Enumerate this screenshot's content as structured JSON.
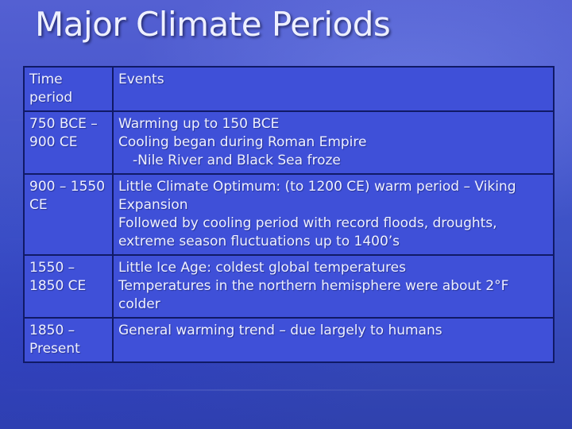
{
  "title": "Major Climate Periods",
  "table": {
    "headers": [
      "Time period",
      "Events"
    ],
    "rows": [
      {
        "period": "750 BCE – 900 CE",
        "events": [
          "Warming up to 150 BCE",
          "Cooling began during Roman Empire",
          "-Nile River and Black Sea froze"
        ]
      },
      {
        "period": "900 – 1550 CE",
        "events": [
          "Little Climate Optimum: (to 1200 CE) warm period – Viking Expansion",
          "Followed by cooling period with record floods, droughts, extreme season fluctuations up to 1400’s"
        ]
      },
      {
        "period": "1550 – 1850 CE",
        "events": [
          "Little Ice Age: coldest global temperatures",
          "Temperatures in the northern hemisphere were about 2°F colder"
        ]
      },
      {
        "period": "1850 – Present",
        "events": [
          "General warming trend – due largely to humans"
        ]
      }
    ]
  },
  "colors": {
    "background": "#4656cc",
    "cell": "#3f50d8",
    "border": "#101a66",
    "text": "#eef0ff"
  }
}
